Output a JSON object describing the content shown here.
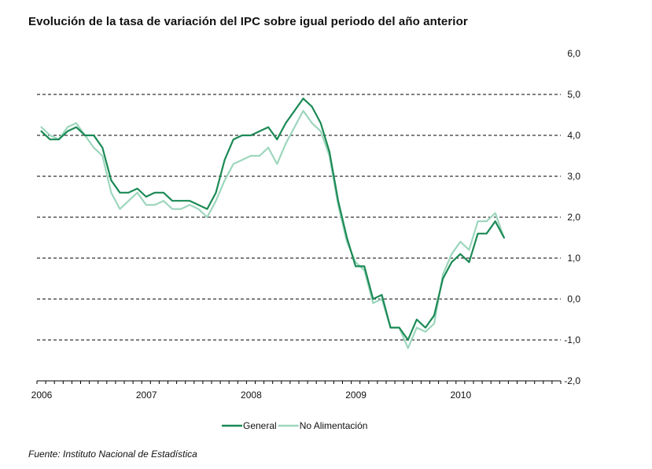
{
  "chart_data": {
    "type": "line",
    "title": "Evolución de la tasa de variación del IPC sobre igual  periodo del año anterior",
    "source": "Fuente: Instituto Nacional de Estadística",
    "xlabel": "",
    "ylabel": "",
    "x_tick_labels": [
      "2006",
      "2007",
      "2008",
      "2009",
      "2010"
    ],
    "y_tick_labels": [
      "6,0",
      "5,0",
      "4,0",
      "3,0",
      "2,0",
      "1,0",
      "0,0",
      "-1,0",
      "-2,0"
    ],
    "ylim": [
      -2.0,
      6.0
    ],
    "x_range_months": [
      "2006-01",
      "2010-12"
    ],
    "grid": "horizontal dashed",
    "y_axis_position": "right",
    "legend_position": "bottom-center",
    "x": [
      "2006-01",
      "2006-02",
      "2006-03",
      "2006-04",
      "2006-05",
      "2006-06",
      "2006-07",
      "2006-08",
      "2006-09",
      "2006-10",
      "2006-11",
      "2006-12",
      "2007-01",
      "2007-02",
      "2007-03",
      "2007-04",
      "2007-05",
      "2007-06",
      "2007-07",
      "2007-08",
      "2007-09",
      "2007-10",
      "2007-11",
      "2007-12",
      "2008-01",
      "2008-02",
      "2008-03",
      "2008-04",
      "2008-05",
      "2008-06",
      "2008-07",
      "2008-08",
      "2008-09",
      "2008-10",
      "2008-11",
      "2008-12",
      "2009-01",
      "2009-02",
      "2009-03",
      "2009-04",
      "2009-05",
      "2009-06",
      "2009-07",
      "2009-08",
      "2009-09",
      "2009-10",
      "2009-11",
      "2009-12",
      "2010-01",
      "2010-02",
      "2010-03",
      "2010-04",
      "2010-05",
      "2010-06"
    ],
    "series": [
      {
        "name": "General",
        "color": "#1b8a55",
        "values": [
          4.1,
          3.9,
          3.9,
          4.1,
          4.2,
          4.0,
          4.0,
          3.7,
          2.9,
          2.6,
          2.6,
          2.7,
          2.5,
          2.6,
          2.6,
          2.4,
          2.4,
          2.4,
          2.3,
          2.2,
          2.6,
          3.4,
          3.9,
          4.0,
          4.0,
          4.1,
          4.2,
          3.9,
          4.3,
          4.6,
          4.9,
          4.7,
          4.3,
          3.6,
          2.4,
          1.5,
          0.8,
          0.8,
          0.0,
          0.1,
          -0.7,
          -0.7,
          -1.0,
          -0.5,
          -0.7,
          -0.4,
          0.5,
          0.9,
          1.1,
          0.9,
          1.6,
          1.6,
          1.9,
          1.5
        ]
      },
      {
        "name": "No Alimentación",
        "color": "#9dd6bd",
        "values": [
          4.2,
          4.0,
          3.9,
          4.2,
          4.3,
          4.0,
          3.7,
          3.5,
          2.6,
          2.2,
          2.4,
          2.6,
          2.3,
          2.3,
          2.4,
          2.2,
          2.2,
          2.3,
          2.2,
          2.0,
          2.4,
          2.9,
          3.3,
          3.4,
          3.5,
          3.5,
          3.7,
          3.3,
          3.8,
          4.2,
          4.6,
          4.3,
          4.1,
          3.5,
          2.3,
          1.4,
          0.9,
          0.7,
          -0.1,
          0.0,
          -0.7,
          -0.7,
          -1.2,
          -0.7,
          -0.8,
          -0.6,
          0.6,
          1.1,
          1.4,
          1.2,
          1.9,
          1.9,
          2.1,
          1.5
        ]
      }
    ]
  }
}
